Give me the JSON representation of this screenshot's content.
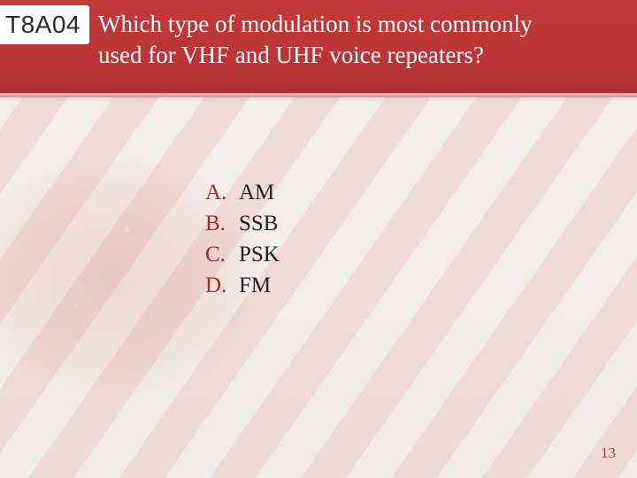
{
  "header": {
    "code": "T8A04",
    "question": "Which type of modulation is most commonly used for VHF and UHF voice repeaters?",
    "bar_color": "#b83434",
    "text_color": "#ffffff",
    "code_bg": "#ffffff",
    "code_text_color": "#2b2b2b",
    "question_fontsize": 27,
    "code_fontsize": 28
  },
  "answers": {
    "letter_color": "#a42a2a",
    "text_color": "#222222",
    "fontsize": 25,
    "items": [
      {
        "letter": "A.",
        "text": "AM"
      },
      {
        "letter": "B.",
        "text": "SSB"
      },
      {
        "letter": "C.",
        "text": "PSK"
      },
      {
        "letter": "D.",
        "text": "FM"
      }
    ]
  },
  "page_number": "13",
  "background": {
    "base_color": "#f4eee9",
    "stripe_color": "rgba(200,60,60,0.10)"
  }
}
